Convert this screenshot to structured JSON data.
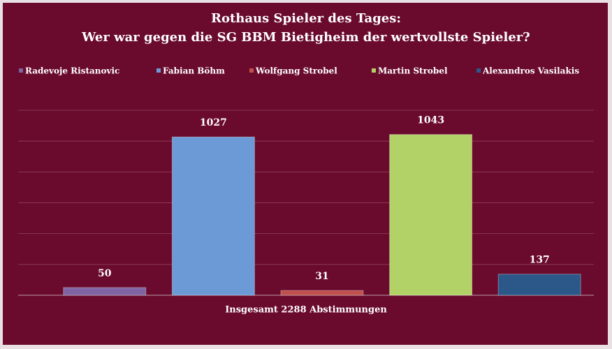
{
  "chart_data": {
    "type": "bar",
    "title": "Rothaus Spieler des Tages:",
    "subtitle": "Wer war gegen die SG BBM Bietigheim der wertvollste Spieler?",
    "xlabel": "Insgesamt 2288 Abstimmungen",
    "categories": [
      null
    ],
    "series": [
      {
        "name": "Radevoje Ristanovic",
        "color": "#8064a2",
        "values": [
          50
        ]
      },
      {
        "name": "Fabian Böhm",
        "color": "#6b9ad6",
        "values": [
          1027
        ]
      },
      {
        "name": "Wolfgang Strobel",
        "color": "#c0504d",
        "values": [
          31
        ]
      },
      {
        "name": "Martin Strobel",
        "color": "#b2d267",
        "values": [
          1043
        ]
      },
      {
        "name": "Alexandros Vasilakis",
        "color": "#2b5888",
        "values": [
          137
        ]
      }
    ],
    "ylim": [
      0,
      1200
    ],
    "yticks": [
      0,
      200,
      400,
      600,
      800,
      1000,
      1200
    ],
    "grid": true,
    "legend": "top"
  }
}
